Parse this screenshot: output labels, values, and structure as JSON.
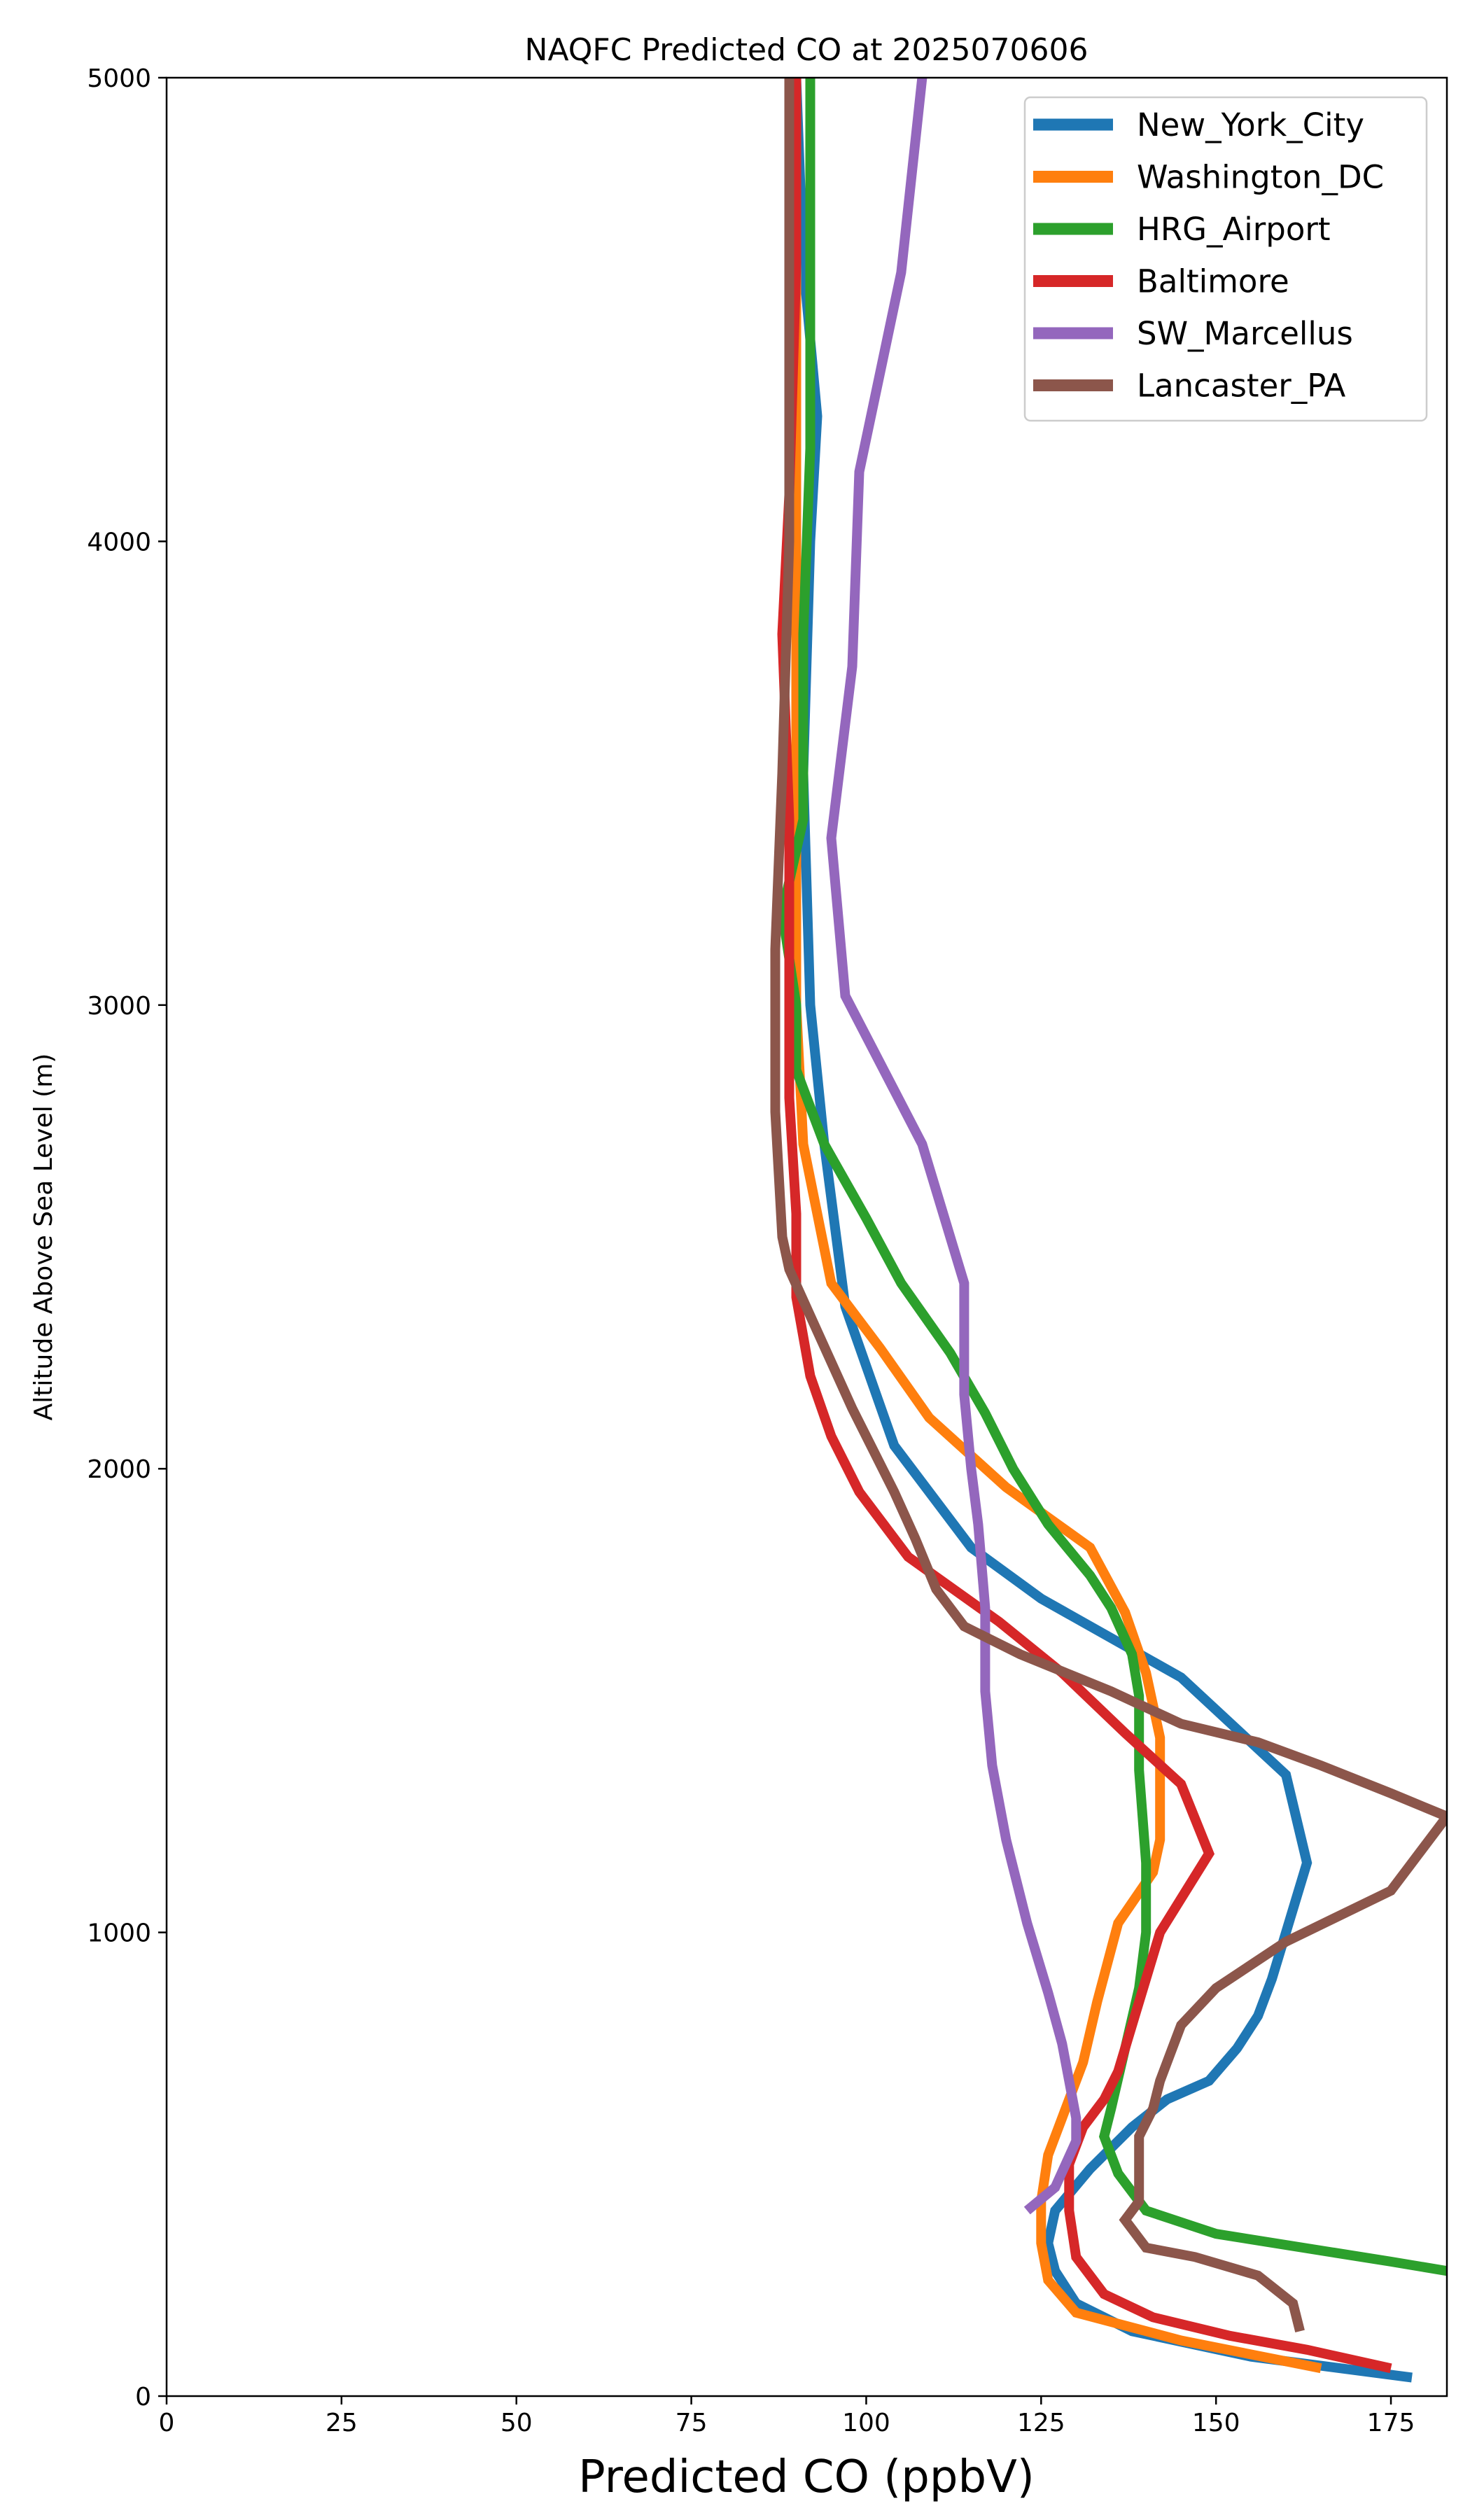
{
  "chart_data": {
    "type": "line",
    "title": "NAQFC Predicted CO at 2025070606",
    "xlabel": "Predicted CO (ppbV)",
    "ylabel": "Altitude Above Sea Level (m)",
    "xlim": [
      0,
      183
    ],
    "ylim": [
      0,
      5000
    ],
    "xticks": [
      0,
      25,
      50,
      75,
      100,
      125,
      150,
      175
    ],
    "yticks": [
      0,
      1000,
      2000,
      3000,
      4000,
      5000
    ],
    "grid": false,
    "legend_position": "top-right",
    "series": [
      {
        "name": "New_York_City",
        "color": "#1f77b4",
        "points": [
          [
            178,
            40
          ],
          [
            155,
            85
          ],
          [
            138,
            140
          ],
          [
            130,
            200
          ],
          [
            127,
            270
          ],
          [
            126,
            330
          ],
          [
            127,
            400
          ],
          [
            132,
            490
          ],
          [
            138,
            580
          ],
          [
            143,
            640
          ],
          [
            149,
            680
          ],
          [
            153,
            750
          ],
          [
            156,
            820
          ],
          [
            158,
            900
          ],
          [
            160,
            1000
          ],
          [
            163,
            1150
          ],
          [
            160,
            1340
          ],
          [
            145,
            1550
          ],
          [
            125,
            1720
          ],
          [
            115,
            1830
          ],
          [
            104,
            2050
          ],
          [
            97,
            2350
          ],
          [
            94,
            2700
          ],
          [
            92,
            3000
          ],
          [
            91,
            3500
          ],
          [
            92,
            4000
          ],
          [
            93,
            4270
          ],
          [
            91,
            4600
          ],
          [
            90,
            5000
          ]
        ]
      },
      {
        "name": "Washington_DC",
        "color": "#ff7f0e",
        "points": [
          [
            165,
            60
          ],
          [
            145,
            120
          ],
          [
            130,
            180
          ],
          [
            126,
            250
          ],
          [
            125,
            330
          ],
          [
            125,
            420
          ],
          [
            126,
            520
          ],
          [
            128,
            600
          ],
          [
            131,
            720
          ],
          [
            133,
            850
          ],
          [
            136,
            1020
          ],
          [
            141,
            1130
          ],
          [
            142,
            1200
          ],
          [
            142,
            1420
          ],
          [
            140,
            1560
          ],
          [
            137,
            1690
          ],
          [
            132,
            1830
          ],
          [
            120,
            1960
          ],
          [
            109,
            2110
          ],
          [
            102,
            2260
          ],
          [
            95,
            2400
          ],
          [
            91,
            2700
          ],
          [
            90,
            3000
          ],
          [
            90,
            4000
          ],
          [
            90,
            5000
          ]
        ]
      },
      {
        "name": "HRG_Airport",
        "color": "#2ca02c",
        "points": [
          [
            183,
            270
          ],
          [
            175,
            290
          ],
          [
            150,
            350
          ],
          [
            140,
            400
          ],
          [
            136,
            480
          ],
          [
            134,
            560
          ],
          [
            135,
            620
          ],
          [
            137,
            750
          ],
          [
            139,
            880
          ],
          [
            140,
            1000
          ],
          [
            140,
            1150
          ],
          [
            139,
            1350
          ],
          [
            139,
            1510
          ],
          [
            138,
            1600
          ],
          [
            135,
            1700
          ],
          [
            132,
            1770
          ],
          [
            126,
            1880
          ],
          [
            121,
            2000
          ],
          [
            117,
            2120
          ],
          [
            112,
            2250
          ],
          [
            105,
            2400
          ],
          [
            100,
            2540
          ],
          [
            94,
            2700
          ],
          [
            90,
            2860
          ],
          [
            90,
            3000
          ],
          [
            88,
            3200
          ],
          [
            91,
            3400
          ],
          [
            91,
            3800
          ],
          [
            92,
            4200
          ],
          [
            92,
            4600
          ],
          [
            92,
            5000
          ]
        ]
      },
      {
        "name": "Baltimore",
        "color": "#d62728",
        "points": [
          [
            175,
            60
          ],
          [
            163,
            100
          ],
          [
            152,
            130
          ],
          [
            141,
            170
          ],
          [
            134,
            220
          ],
          [
            130,
            300
          ],
          [
            129,
            400
          ],
          [
            129,
            500
          ],
          [
            131,
            580
          ],
          [
            134,
            640
          ],
          [
            136,
            700
          ],
          [
            138,
            800
          ],
          [
            140,
            900
          ],
          [
            142,
            1000
          ],
          [
            149,
            1170
          ],
          [
            145,
            1320
          ],
          [
            137,
            1430
          ],
          [
            128,
            1560
          ],
          [
            119,
            1670
          ],
          [
            106,
            1810
          ],
          [
            99,
            1950
          ],
          [
            95,
            2070
          ],
          [
            92,
            2200
          ],
          [
            90,
            2370
          ],
          [
            90,
            2550
          ],
          [
            89,
            2800
          ],
          [
            89,
            3000
          ],
          [
            89,
            3400
          ],
          [
            88,
            3800
          ],
          [
            89,
            4100
          ],
          [
            90,
            4600
          ],
          [
            90,
            5000
          ]
        ]
      },
      {
        "name": "SW_Marcellus",
        "color": "#9467bd",
        "points": [
          [
            123,
            400
          ],
          [
            127,
            450
          ],
          [
            130,
            550
          ],
          [
            130,
            600
          ],
          [
            129,
            680
          ],
          [
            128,
            760
          ],
          [
            126,
            870
          ],
          [
            123,
            1020
          ],
          [
            120,
            1200
          ],
          [
            118,
            1360
          ],
          [
            117,
            1520
          ],
          [
            117,
            1700
          ],
          [
            116,
            1880
          ],
          [
            115,
            2000
          ],
          [
            114,
            2160
          ],
          [
            114,
            2400
          ],
          [
            108,
            2700
          ],
          [
            97,
            3020
          ],
          [
            95,
            3360
          ],
          [
            98,
            3730
          ],
          [
            99,
            4150
          ],
          [
            105,
            4580
          ],
          [
            108,
            5000
          ]
        ]
      },
      {
        "name": "Lancaster_PA",
        "color": "#8c564b",
        "points": [
          [
            162,
            140
          ],
          [
            161,
            200
          ],
          [
            156,
            260
          ],
          [
            147,
            300
          ],
          [
            140,
            320
          ],
          [
            137,
            380
          ],
          [
            139,
            420
          ],
          [
            139,
            480
          ],
          [
            139,
            560
          ],
          [
            141,
            620
          ],
          [
            142,
            680
          ],
          [
            145,
            800
          ],
          [
            150,
            880
          ],
          [
            160,
            980
          ],
          [
            175,
            1090
          ],
          [
            183,
            1250
          ],
          [
            175,
            1300
          ],
          [
            165,
            1360
          ],
          [
            156,
            1410
          ],
          [
            145,
            1450
          ],
          [
            135,
            1520
          ],
          [
            122,
            1600
          ],
          [
            114,
            1660
          ],
          [
            110,
            1740
          ],
          [
            107,
            1850
          ],
          [
            104,
            1950
          ],
          [
            98,
            2130
          ],
          [
            89,
            2430
          ],
          [
            88,
            2500
          ],
          [
            87,
            2770
          ],
          [
            87,
            3000
          ],
          [
            87,
            3120
          ],
          [
            88,
            3500
          ],
          [
            89,
            4000
          ],
          [
            89,
            4600
          ],
          [
            89,
            5000
          ]
        ]
      }
    ]
  }
}
